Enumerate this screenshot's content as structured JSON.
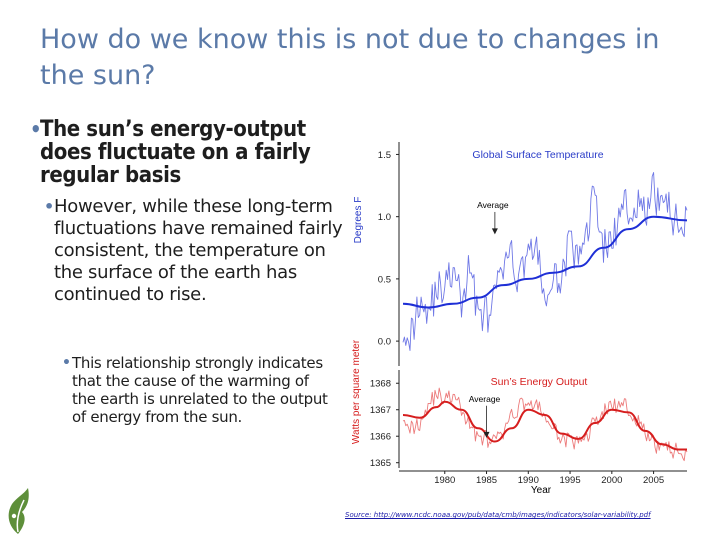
{
  "slide": {
    "title": "How do we know this is not due to changes in the sun?",
    "bullet1": "The sun’s energy-output does fluctuate on a fairly regular basis",
    "bullet2": "However, while these long-term fluctuations have remained fairly consistent, the temperature on the surface of the earth has continued to rise.",
    "bullet3": "This relationship strongly indicates that the cause of the warming of the earth is unrelated to the output of energy from the sun.",
    "source": "Source: http://www.ncdc.noaa.gov/pub/data/cmb/images/indicators/solar-variability.pdf"
  },
  "colors": {
    "title": "#5b7aa8",
    "temperature": "#1e2fd6",
    "temperature_raw": "#6f78e6",
    "solar": "#d61e1e",
    "solar_raw": "#ec7b7b",
    "panel_title_blue": "#2a3cc8",
    "panel_title_red": "#d61e1e"
  },
  "chart_data": [
    {
      "type": "line",
      "title": "Global Surface Temperature",
      "ylabel": "Degrees F",
      "ylim": [
        -0.2,
        1.6
      ],
      "yticks": [
        "1.5",
        "1.0",
        "0.5",
        "0.0"
      ],
      "annotation": {
        "text": "Average",
        "x": 1986,
        "y": 0.85
      },
      "series": [
        {
          "name": "",
          "kind": "annual",
          "x": [
            1975,
            1976,
            1977,
            1978,
            1979,
            1980,
            1981,
            1982,
            1983,
            1984,
            1985,
            1986,
            1987,
            1988,
            1989,
            1990,
            1991,
            1992,
            1993,
            1994,
            1995,
            1996,
            1997,
            1998,
            1999,
            2000,
            2001,
            2002,
            2003,
            2004,
            2005,
            2006,
            2007,
            2008,
            2009
          ],
          "y": [
            0.15,
            0.05,
            0.35,
            0.25,
            0.4,
            0.45,
            0.55,
            0.3,
            0.6,
            0.25,
            0.2,
            0.35,
            0.6,
            0.65,
            0.5,
            0.8,
            0.7,
            0.35,
            0.45,
            0.55,
            0.8,
            0.6,
            0.9,
            1.2,
            0.75,
            0.8,
            1.0,
            1.1,
            1.1,
            1.0,
            1.2,
            1.1,
            1.05,
            0.9,
            1.05
          ]
        },
        {
          "name": "",
          "kind": "smoothed",
          "x": [
            1975,
            1978,
            1981,
            1984,
            1987,
            1990,
            1993,
            1996,
            1999,
            2002,
            2005,
            2009
          ],
          "y": [
            0.3,
            0.27,
            0.3,
            0.35,
            0.45,
            0.5,
            0.55,
            0.6,
            0.75,
            0.9,
            1.0,
            0.97
          ]
        }
      ]
    },
    {
      "type": "line",
      "title": "Sun’s Energy Output",
      "ylabel": "Watts per square meter",
      "xlabel": "Year",
      "ylim": [
        1364.8,
        1368.5
      ],
      "yticks": [
        "1368",
        "1367",
        "1366",
        "1365"
      ],
      "xticks": [
        "1980",
        "1985",
        "1990",
        "1995",
        "2000",
        "2005"
      ],
      "xlim": [
        1975,
        2009
      ],
      "annotation": {
        "text": "Average",
        "x": 1985,
        "y": 1365.9
      },
      "series": [
        {
          "name": "",
          "kind": "daily",
          "x": [
            1975,
            1976,
            1977,
            1978,
            1979,
            1980,
            1981,
            1982,
            1983,
            1984,
            1985,
            1986,
            1987,
            1988,
            1989,
            1990,
            1991,
            1992,
            1993,
            1994,
            1995,
            1996,
            1997,
            1998,
            1999,
            2000,
            2001,
            2002,
            2003,
            2004,
            2005,
            2006,
            2007,
            2008,
            2009
          ],
          "y": [
            1366.9,
            1366.3,
            1366.5,
            1367.2,
            1367.6,
            1367.4,
            1367.5,
            1367.0,
            1366.4,
            1366.0,
            1365.9,
            1365.8,
            1366.1,
            1366.7,
            1367.2,
            1367.3,
            1367.1,
            1366.8,
            1366.2,
            1366.0,
            1365.8,
            1365.7,
            1366.0,
            1366.6,
            1366.9,
            1367.2,
            1367.1,
            1367.1,
            1366.6,
            1366.1,
            1365.7,
            1365.6,
            1365.5,
            1365.4,
            1365.4
          ]
        },
        {
          "name": "",
          "kind": "smoothed",
          "x": [
            1975,
            1977,
            1979,
            1980,
            1982,
            1984,
            1986,
            1988,
            1990,
            1992,
            1994,
            1996,
            1998,
            2000,
            2002,
            2004,
            2006,
            2008,
            2009
          ],
          "y": [
            1366.8,
            1366.7,
            1367.1,
            1367.3,
            1367.0,
            1366.3,
            1365.8,
            1366.3,
            1367.0,
            1366.8,
            1366.1,
            1365.9,
            1366.5,
            1367.0,
            1366.9,
            1366.2,
            1365.7,
            1365.5,
            1365.5
          ]
        }
      ]
    }
  ]
}
